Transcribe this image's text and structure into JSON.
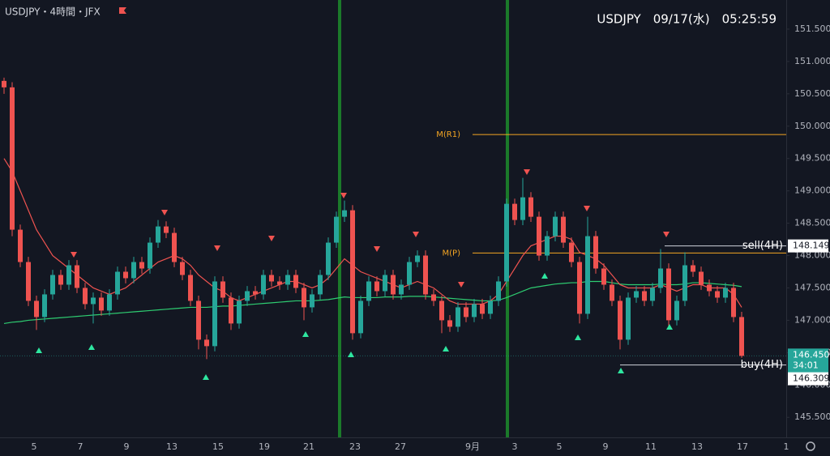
{
  "header": {
    "symbol": "USDJPY・4時間・JFX",
    "info": "USDJPY　09/17(水)　05:25:59"
  },
  "chart_data": {
    "type": "candlestick",
    "up_color": "#26a69a",
    "down_color": "#ef5350",
    "ohlc": [
      [
        150.7,
        150.75,
        150.5,
        150.6
      ],
      [
        150.6,
        150.68,
        148.3,
        148.4
      ],
      [
        148.4,
        148.48,
        147.82,
        147.9
      ],
      [
        147.9,
        147.98,
        147.22,
        147.3
      ],
      [
        147.3,
        147.38,
        146.85,
        147.05
      ],
      [
        147.05,
        147.48,
        146.97,
        147.4
      ],
      [
        147.4,
        147.78,
        147.32,
        147.7
      ],
      [
        147.7,
        147.78,
        147.47,
        147.55
      ],
      [
        147.55,
        147.93,
        147.47,
        147.85
      ],
      [
        147.85,
        147.93,
        147.42,
        147.5
      ],
      [
        147.5,
        147.58,
        147.17,
        147.25
      ],
      [
        147.25,
        147.43,
        146.95,
        147.35
      ],
      [
        147.35,
        147.43,
        147.07,
        147.15
      ],
      [
        147.15,
        147.48,
        147.07,
        147.4
      ],
      [
        147.4,
        147.83,
        147.32,
        147.75
      ],
      [
        147.75,
        147.83,
        147.57,
        147.65
      ],
      [
        147.65,
        147.98,
        147.57,
        147.9
      ],
      [
        147.9,
        147.98,
        147.72,
        147.8
      ],
      [
        147.8,
        148.28,
        147.72,
        148.2
      ],
      [
        148.2,
        148.55,
        148.12,
        148.45
      ],
      [
        148.45,
        148.53,
        148.27,
        148.35
      ],
      [
        148.35,
        148.43,
        147.82,
        147.9
      ],
      [
        147.9,
        147.98,
        147.62,
        147.7
      ],
      [
        147.7,
        147.78,
        147.22,
        147.3
      ],
      [
        147.3,
        147.38,
        146.55,
        146.7
      ],
      [
        146.7,
        146.78,
        146.4,
        146.6
      ],
      [
        146.6,
        147.68,
        146.52,
        147.6
      ],
      [
        147.6,
        147.68,
        147.27,
        147.35
      ],
      [
        147.35,
        147.43,
        146.85,
        146.95
      ],
      [
        146.95,
        147.38,
        146.87,
        147.3
      ],
      [
        147.3,
        147.53,
        147.22,
        147.45
      ],
      [
        147.45,
        147.53,
        147.32,
        147.4
      ],
      [
        147.4,
        147.78,
        147.32,
        147.7
      ],
      [
        147.7,
        147.78,
        147.52,
        147.6
      ],
      [
        147.6,
        147.68,
        147.47,
        147.55
      ],
      [
        147.55,
        147.78,
        147.47,
        147.7
      ],
      [
        147.7,
        147.78,
        147.42,
        147.5
      ],
      [
        147.5,
        147.58,
        147.0,
        147.2
      ],
      [
        147.2,
        147.48,
        147.12,
        147.4
      ],
      [
        147.4,
        147.78,
        147.32,
        147.7
      ],
      [
        147.7,
        148.28,
        147.62,
        148.2
      ],
      [
        148.2,
        148.68,
        148.12,
        148.6
      ],
      [
        148.6,
        148.85,
        148.52,
        148.7
      ],
      [
        148.7,
        148.78,
        146.7,
        146.8
      ],
      [
        146.8,
        147.38,
        146.72,
        147.3
      ],
      [
        147.3,
        147.68,
        147.22,
        147.6
      ],
      [
        147.6,
        147.68,
        147.37,
        147.45
      ],
      [
        147.45,
        147.78,
        147.37,
        147.7
      ],
      [
        147.7,
        147.78,
        147.32,
        147.4
      ],
      [
        147.4,
        147.63,
        147.32,
        147.55
      ],
      [
        147.55,
        147.98,
        147.47,
        147.9
      ],
      [
        147.9,
        148.08,
        147.82,
        148.0
      ],
      [
        148.0,
        148.08,
        147.32,
        147.4
      ],
      [
        147.4,
        147.48,
        147.22,
        147.3
      ],
      [
        147.3,
        147.38,
        146.8,
        147.0
      ],
      [
        147.0,
        147.08,
        146.82,
        146.9
      ],
      [
        146.9,
        147.28,
        146.82,
        147.2
      ],
      [
        147.2,
        147.28,
        146.97,
        147.05
      ],
      [
        147.05,
        147.33,
        146.97,
        147.25
      ],
      [
        147.25,
        147.33,
        147.02,
        147.1
      ],
      [
        147.1,
        147.38,
        147.02,
        147.3
      ],
      [
        147.3,
        147.68,
        147.22,
        147.6
      ],
      [
        147.6,
        148.88,
        147.52,
        148.8
      ],
      [
        148.8,
        148.88,
        148.47,
        148.55
      ],
      [
        148.55,
        149.2,
        148.47,
        148.9
      ],
      [
        148.9,
        148.98,
        148.52,
        148.6
      ],
      [
        148.6,
        148.68,
        147.92,
        148.0
      ],
      [
        148.0,
        148.38,
        147.92,
        148.3
      ],
      [
        148.3,
        148.68,
        148.22,
        148.6
      ],
      [
        148.6,
        148.68,
        148.12,
        148.2
      ],
      [
        148.2,
        148.28,
        147.82,
        147.9
      ],
      [
        147.9,
        147.98,
        146.95,
        147.1
      ],
      [
        147.1,
        148.6,
        147.02,
        148.3
      ],
      [
        148.3,
        148.38,
        147.72,
        147.8
      ],
      [
        147.8,
        147.88,
        147.47,
        147.55
      ],
      [
        147.55,
        147.63,
        147.22,
        147.3
      ],
      [
        147.3,
        147.38,
        146.55,
        146.7
      ],
      [
        146.7,
        147.43,
        146.62,
        147.35
      ],
      [
        147.35,
        147.53,
        147.27,
        147.45
      ],
      [
        147.45,
        147.53,
        147.22,
        147.3
      ],
      [
        147.3,
        147.58,
        147.22,
        147.5
      ],
      [
        147.5,
        148.1,
        147.42,
        147.8
      ],
      [
        147.8,
        147.88,
        146.9,
        147.0
      ],
      [
        147.0,
        147.38,
        146.92,
        147.3
      ],
      [
        147.3,
        148.05,
        147.22,
        147.85
      ],
      [
        147.85,
        147.93,
        147.67,
        147.75
      ],
      [
        147.75,
        147.83,
        147.47,
        147.55
      ],
      [
        147.55,
        147.63,
        147.37,
        147.45
      ],
      [
        147.45,
        147.53,
        147.27,
        147.35
      ],
      [
        147.35,
        147.58,
        147.27,
        147.5
      ],
      [
        147.5,
        147.58,
        146.97,
        147.05
      ],
      [
        147.05,
        147.13,
        146.42,
        146.45
      ]
    ],
    "ma_fast": {
      "color": "#ef5350",
      "values": [
        149.5,
        149.3,
        149.0,
        148.7,
        148.4,
        148.2,
        148.0,
        147.9,
        147.8,
        147.7,
        147.6,
        147.5,
        147.45,
        147.4,
        147.45,
        147.5,
        147.6,
        147.7,
        147.8,
        147.9,
        147.95,
        148.0,
        147.95,
        147.85,
        147.7,
        147.6,
        147.5,
        147.45,
        147.35,
        147.3,
        147.35,
        147.4,
        147.45,
        147.5,
        147.55,
        147.6,
        147.6,
        147.55,
        147.5,
        147.55,
        147.65,
        147.8,
        147.95,
        147.85,
        147.75,
        147.7,
        147.65,
        147.6,
        147.55,
        147.5,
        147.55,
        147.6,
        147.55,
        147.5,
        147.4,
        147.3,
        147.25,
        147.25,
        147.25,
        147.25,
        147.3,
        147.4,
        147.6,
        147.8,
        148.0,
        148.15,
        148.2,
        148.25,
        148.3,
        148.3,
        148.25,
        148.05,
        148.0,
        147.95,
        147.85,
        147.7,
        147.55,
        147.5,
        147.5,
        147.5,
        147.5,
        147.55,
        147.5,
        147.45,
        147.5,
        147.55,
        147.55,
        147.5,
        147.5,
        147.5,
        147.4,
        147.2
      ]
    },
    "ma_slow": {
      "color": "#2ecc71",
      "values": [
        146.95,
        146.97,
        146.98,
        147.0,
        147.01,
        147.02,
        147.03,
        147.04,
        147.05,
        147.06,
        147.07,
        147.08,
        147.09,
        147.1,
        147.11,
        147.12,
        147.13,
        147.14,
        147.15,
        147.16,
        147.17,
        147.18,
        147.19,
        147.2,
        147.2,
        147.2,
        147.21,
        147.22,
        147.22,
        147.23,
        147.24,
        147.25,
        147.26,
        147.27,
        147.28,
        147.29,
        147.3,
        147.3,
        147.3,
        147.31,
        147.32,
        147.34,
        147.36,
        147.35,
        147.35,
        147.35,
        147.35,
        147.36,
        147.36,
        147.36,
        147.37,
        147.37,
        147.37,
        147.36,
        147.35,
        147.34,
        147.33,
        147.32,
        147.31,
        147.3,
        147.3,
        147.31,
        147.35,
        147.4,
        147.45,
        147.5,
        147.52,
        147.54,
        147.56,
        147.57,
        147.58,
        147.58,
        147.6,
        147.6,
        147.6,
        147.58,
        147.56,
        147.55,
        147.55,
        147.55,
        147.55,
        147.56,
        147.55,
        147.55,
        147.56,
        147.58,
        147.58,
        147.57,
        147.56,
        147.55,
        147.54,
        147.52
      ]
    },
    "ylim": [
      145.19,
      151.95
    ],
    "yticks": [
      {
        "value": 145.5,
        "label": "145.500"
      },
      {
        "value": 146,
        "label": "146.000"
      },
      {
        "value": 146.5,
        "label": "146.500"
      },
      {
        "value": 147,
        "label": "147.000"
      },
      {
        "value": 147.5,
        "label": "147.500"
      },
      {
        "value": 148,
        "label": "148.000"
      },
      {
        "value": 148.5,
        "label": "148.500"
      },
      {
        "value": 149,
        "label": "149.000"
      },
      {
        "value": 149.5,
        "label": "149.500"
      },
      {
        "value": 150,
        "label": "150.000"
      },
      {
        "value": 150.5,
        "label": "150.500"
      },
      {
        "value": 151,
        "label": "151.000"
      },
      {
        "value": 151.5,
        "label": "151.500"
      }
    ],
    "x_labels": [
      "5",
      "7",
      "9",
      "13",
      "15",
      "19",
      "21",
      "23",
      "27",
      "9月",
      "3",
      "5",
      "9",
      "11",
      "13",
      "17",
      "1"
    ],
    "levels": [
      {
        "label": "M(R1)",
        "value": 149.87,
        "color": "#f5a623"
      },
      {
        "label": "M(P)",
        "value": 148.04,
        "color": "#f5a623"
      }
    ],
    "sell": {
      "label": "sell(4H)",
      "value": 148.149
    },
    "buy": {
      "label": "buy(4H)",
      "value": 146.309
    },
    "last": {
      "value": 146.45,
      "label": "146.450",
      "countdown": "34:01"
    }
  }
}
